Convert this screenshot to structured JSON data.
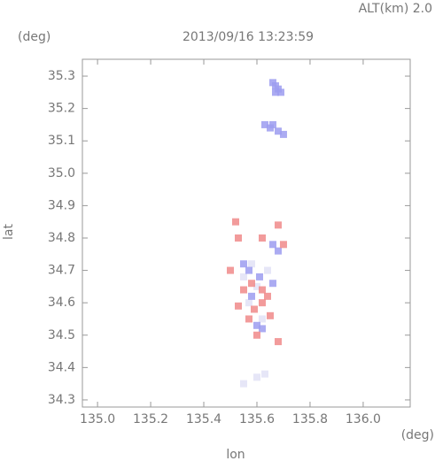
{
  "chart_data": {
    "type": "scatter",
    "title": "2013/09/16 13:23:59",
    "subtitle": "ALT(km) 2.0",
    "y_unit": "(deg)",
    "x_unit": "(deg)",
    "xlabel": "lon",
    "ylabel": "lat",
    "xlim": [
      134.943,
      136.177
    ],
    "ylim": [
      34.278,
      35.352
    ],
    "xticks": [
      {
        "value": 135,
        "label": "135.0"
      },
      135.2,
      135.4,
      135.6,
      135.8,
      {
        "value": 136,
        "label": "136.0"
      }
    ],
    "yticks": [
      34.3,
      34.4,
      34.5,
      34.6,
      34.7,
      34.8,
      34.9,
      {
        "value": 35,
        "label": "35.0"
      },
      35.1,
      35.2,
      35.3
    ],
    "series": [
      {
        "color": "#e2e2f6",
        "x": [
          135.57,
          135.6,
          135.55,
          135.64,
          135.58,
          135.62,
          135.55,
          135.6,
          135.63
        ],
        "values": [
          34.6,
          34.65,
          34.68,
          34.7,
          34.72,
          34.55,
          34.35,
          34.37,
          34.38
        ]
      },
      {
        "color": "#9c9cf0",
        "x": [
          135.66,
          135.67,
          135.68,
          135.67,
          135.69,
          135.63,
          135.65,
          135.66,
          135.68,
          135.7,
          135.55,
          135.57,
          135.58,
          135.6,
          135.62,
          135.61,
          135.66,
          135.68,
          135.66
        ],
        "values": [
          35.28,
          35.27,
          35.26,
          35.25,
          35.25,
          35.15,
          35.14,
          35.15,
          35.13,
          35.12,
          34.72,
          34.7,
          34.62,
          34.53,
          34.52,
          34.68,
          34.78,
          34.76,
          34.66
        ]
      },
      {
        "color": "#f08a8a",
        "x": [
          135.52,
          135.53,
          135.62,
          135.68,
          135.7,
          135.5,
          135.55,
          135.58,
          135.59,
          135.62,
          135.64,
          135.65,
          135.62,
          135.6,
          135.68,
          135.53,
          135.57
        ],
        "values": [
          34.85,
          34.8,
          34.8,
          34.84,
          34.78,
          34.7,
          34.64,
          34.66,
          34.58,
          34.64,
          34.62,
          34.56,
          34.6,
          34.5,
          34.48,
          34.59,
          34.55
        ]
      }
    ]
  }
}
